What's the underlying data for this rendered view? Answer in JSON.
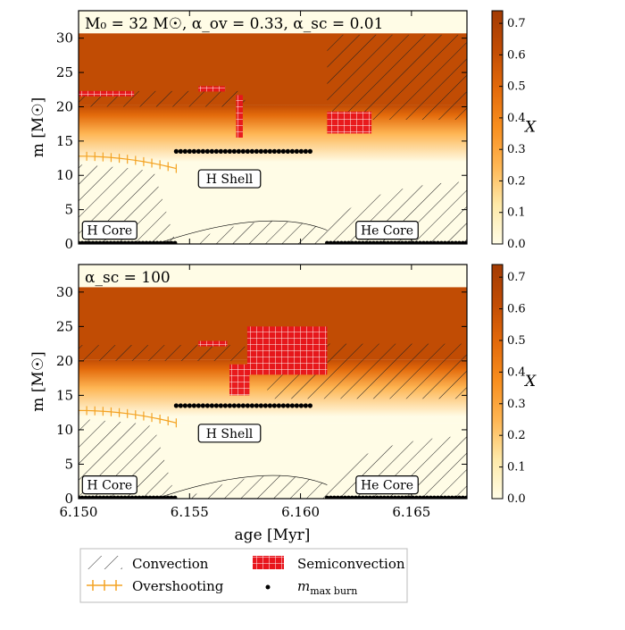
{
  "chart_data": {
    "type": "heatmap",
    "legend": {
      "placement": "bottom",
      "items": [
        {
          "label": "Convection",
          "symbol": "hatch"
        },
        {
          "label": "Overshooting",
          "symbol": "orange-ticks"
        },
        {
          "label": "Semiconvection",
          "symbol": "red-grid"
        },
        {
          "label": "m_max burn",
          "symbol": "black-dot"
        }
      ]
    },
    "shared": {
      "xlabel": "age [Myr]",
      "ylabel": "m [M☉]",
      "xlim": [
        6.15,
        6.1675
      ],
      "ylim": [
        0,
        34
      ],
      "xticks": [
        "6.150",
        "6.155",
        "6.160",
        "6.165"
      ],
      "xtick_values": [
        6.15,
        6.155,
        6.16,
        6.165
      ],
      "yticks": [
        0,
        5,
        10,
        15,
        20,
        25,
        30
      ],
      "colorbar": {
        "label": "X",
        "range": [
          0,
          0.74
        ],
        "ticks": [
          "0.0",
          "0.1",
          "0.2",
          "0.3",
          "0.4",
          "0.5",
          "0.6",
          "0.7"
        ],
        "tick_values": [
          0,
          0.1,
          0.2,
          0.3,
          0.4,
          0.5,
          0.6,
          0.7
        ],
        "colors": [
          "#fffce6",
          "#fee9a9",
          "#feb654",
          "#f88f1f",
          "#e36a0b",
          "#c14c04",
          "#a33b03"
        ]
      }
    },
    "panels": [
      {
        "title": "M₀ = 32 M☉, α_ov = 0.33, α_sc = 0.01",
        "surface_mass": 30.7,
        "x_axis_visible": false,
        "max_burn": {
          "core_segments": [
            [
              6.15,
              6.1544
            ],
            [
              6.1612,
              6.1675
            ]
          ],
          "shell_x": [
            6.1544,
            6.1606
          ],
          "shell_m": 13.5
        },
        "hydrogen_regions": [
          {
            "name": "envelope",
            "m_range": [
              20.2,
              30.7
            ],
            "X": 0.7
          },
          {
            "name": "gradient",
            "m_range": [
              11.0,
              20.2
            ],
            "X_range": [
              0.0,
              0.6
            ]
          },
          {
            "name": "h-core",
            "age_end": 6.1544,
            "X": 0.02
          }
        ],
        "convection_regions": [
          {
            "name": "h-core",
            "x": [
              6.15,
              6.1525,
              6.1534,
              6.1544
            ],
            "m_top": [
              11.6,
              11.0,
              10.5,
              0
            ],
            "m_bottom": 0
          },
          {
            "name": "envelope-early",
            "x": [
              6.15,
              6.1575
            ],
            "m": [
              20.0,
              22.3
            ]
          },
          {
            "name": "envelope-late",
            "x": [
              6.1612,
              6.1675
            ],
            "m": [
              18.1,
              30.5
            ]
          },
          {
            "name": "he-core",
            "x": [
              6.1612,
              6.1675
            ],
            "m_top": [
              2.0,
              9.1
            ]
          }
        ],
        "overshooting": [
          {
            "x": [
              6.15,
              6.1544
            ],
            "m": [
              12.8,
              11.0
            ]
          }
        ],
        "semiconvection": [
          {
            "x": [
              6.15,
              6.1525
            ],
            "m": [
              22.3,
              22.3
            ]
          },
          {
            "x": [
              6.1554,
              6.1566
            ],
            "m": [
              22.7,
              23.0
            ]
          },
          {
            "x": [
              6.1571,
              6.1574
            ],
            "m": [
              21.7,
              15.5
            ]
          },
          {
            "x": [
              6.1612,
              6.1632
            ],
            "m": [
              16.1,
              19.3
            ]
          }
        ],
        "labels": [
          {
            "text": "H Shell",
            "x": 6.1568,
            "m": 9.5
          },
          {
            "text": "H Core",
            "x": 6.1514,
            "m": 2.0
          },
          {
            "text": "He Core",
            "x": 6.1639,
            "m": 2.0
          }
        ]
      },
      {
        "title": "α_sc = 100",
        "surface_mass": 30.7,
        "x_axis_visible": true,
        "max_burn": {
          "core_segments": [
            [
              6.15,
              6.1544
            ],
            [
              6.1612,
              6.1675
            ]
          ],
          "shell_x": [
            6.1544,
            6.1606
          ],
          "shell_m": 13.5
        },
        "hydrogen_regions": [
          {
            "name": "envelope",
            "m_range": [
              20.2,
              30.7
            ],
            "X": 0.7
          },
          {
            "name": "gradient",
            "m_range": [
              11.0,
              20.2
            ],
            "X_range": [
              0.0,
              0.6
            ]
          }
        ],
        "convection_regions": [
          {
            "name": "h-core",
            "x": [
              6.15,
              6.1525,
              6.1534,
              6.1544
            ],
            "m_top": [
              11.6,
              11.0,
              10.5,
              0
            ],
            "m_bottom": 0
          },
          {
            "name": "envelope-early",
            "x": [
              6.15,
              6.1575
            ],
            "m": [
              20.0,
              22.3
            ]
          },
          {
            "name": "envelope-late",
            "x": [
              6.1585,
              6.1675
            ],
            "m": [
              14.5,
              22.5
            ]
          },
          {
            "name": "he-core",
            "x": [
              6.1612,
              6.1675
            ],
            "m_top": [
              2.0,
              9.1
            ]
          }
        ],
        "overshooting": [
          {
            "x": [
              6.15,
              6.1544
            ],
            "m": [
              12.8,
              11.0
            ]
          }
        ],
        "semiconvection": [
          {
            "x": [
              6.1554,
              6.1567
            ],
            "m": [
              22.5,
              22.9
            ]
          },
          {
            "x": [
              6.1568,
              6.1577
            ],
            "m": [
              19.5,
              15.0
            ]
          },
          {
            "x": [
              6.1576,
              6.1612
            ],
            "m": [
              25.0,
              18.0
            ]
          }
        ],
        "labels": [
          {
            "text": "H Shell",
            "x": 6.1568,
            "m": 9.5
          },
          {
            "text": "H Core",
            "x": 6.1514,
            "m": 2.0
          },
          {
            "text": "He Core",
            "x": 6.1639,
            "m": 2.0
          }
        ]
      }
    ]
  }
}
